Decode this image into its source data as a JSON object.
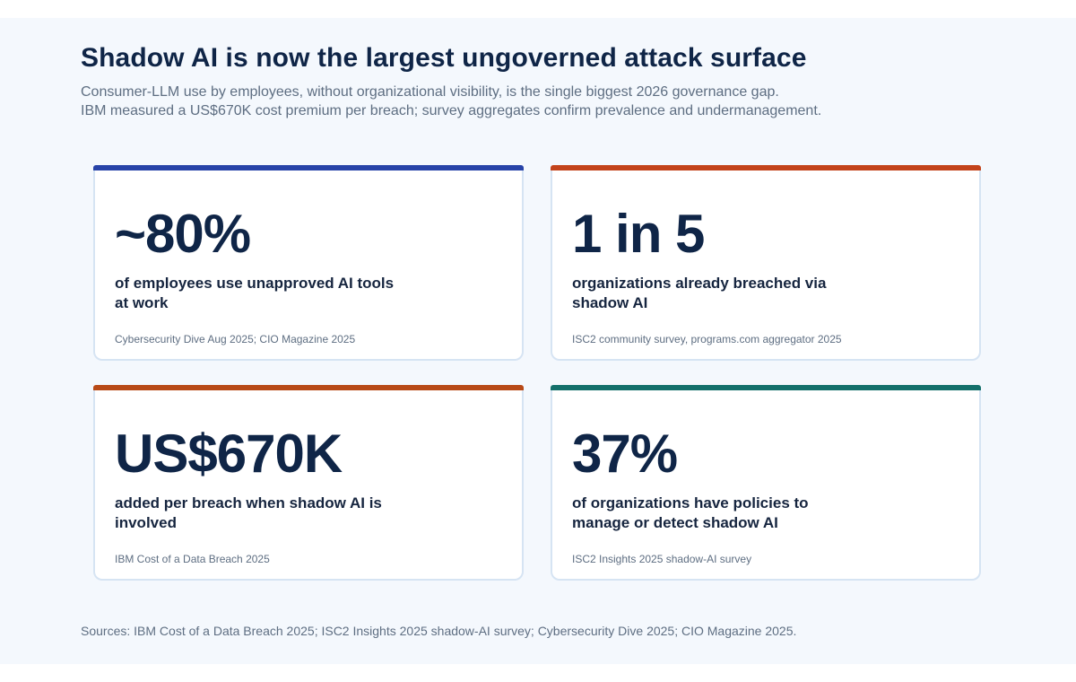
{
  "header": {
    "title": "Shadow AI is now the largest ungoverned attack surface",
    "subtitle_line1": "Consumer-LLM use by employees, without organizational visibility, is the single biggest 2026 governance gap.",
    "subtitle_line2": "IBM measured a US$670K cost premium per breach; survey aggregates confirm prevalence and undermanagement."
  },
  "cards": [
    {
      "stat": "~80%",
      "description": "of employees use unapproved AI tools at work",
      "source": "Cybersecurity Dive Aug 2025; CIO Magazine 2025",
      "accent_color": "#2743a8"
    },
    {
      "stat": "1 in 5",
      "description": "organizations already breached via shadow AI",
      "source": "ISC2 community survey, programs.com aggregator 2025",
      "accent_color": "#c3431b"
    },
    {
      "stat": "US$670K",
      "description": "added per breach when shadow AI is involved",
      "source": "IBM Cost of a Data Breach 2025",
      "accent_color": "#b84a17"
    },
    {
      "stat": "37%",
      "description": "of organizations have policies to manage or detect shadow AI",
      "source": "ISC2 Insights 2025 shadow-AI survey",
      "accent_color": "#14706b"
    }
  ],
  "footer": {
    "sources": "Sources: IBM Cost of a Data Breach 2025; ISC2 Insights 2025 shadow-AI survey; Cybersecurity Dive 2025; CIO Magazine 2025."
  }
}
